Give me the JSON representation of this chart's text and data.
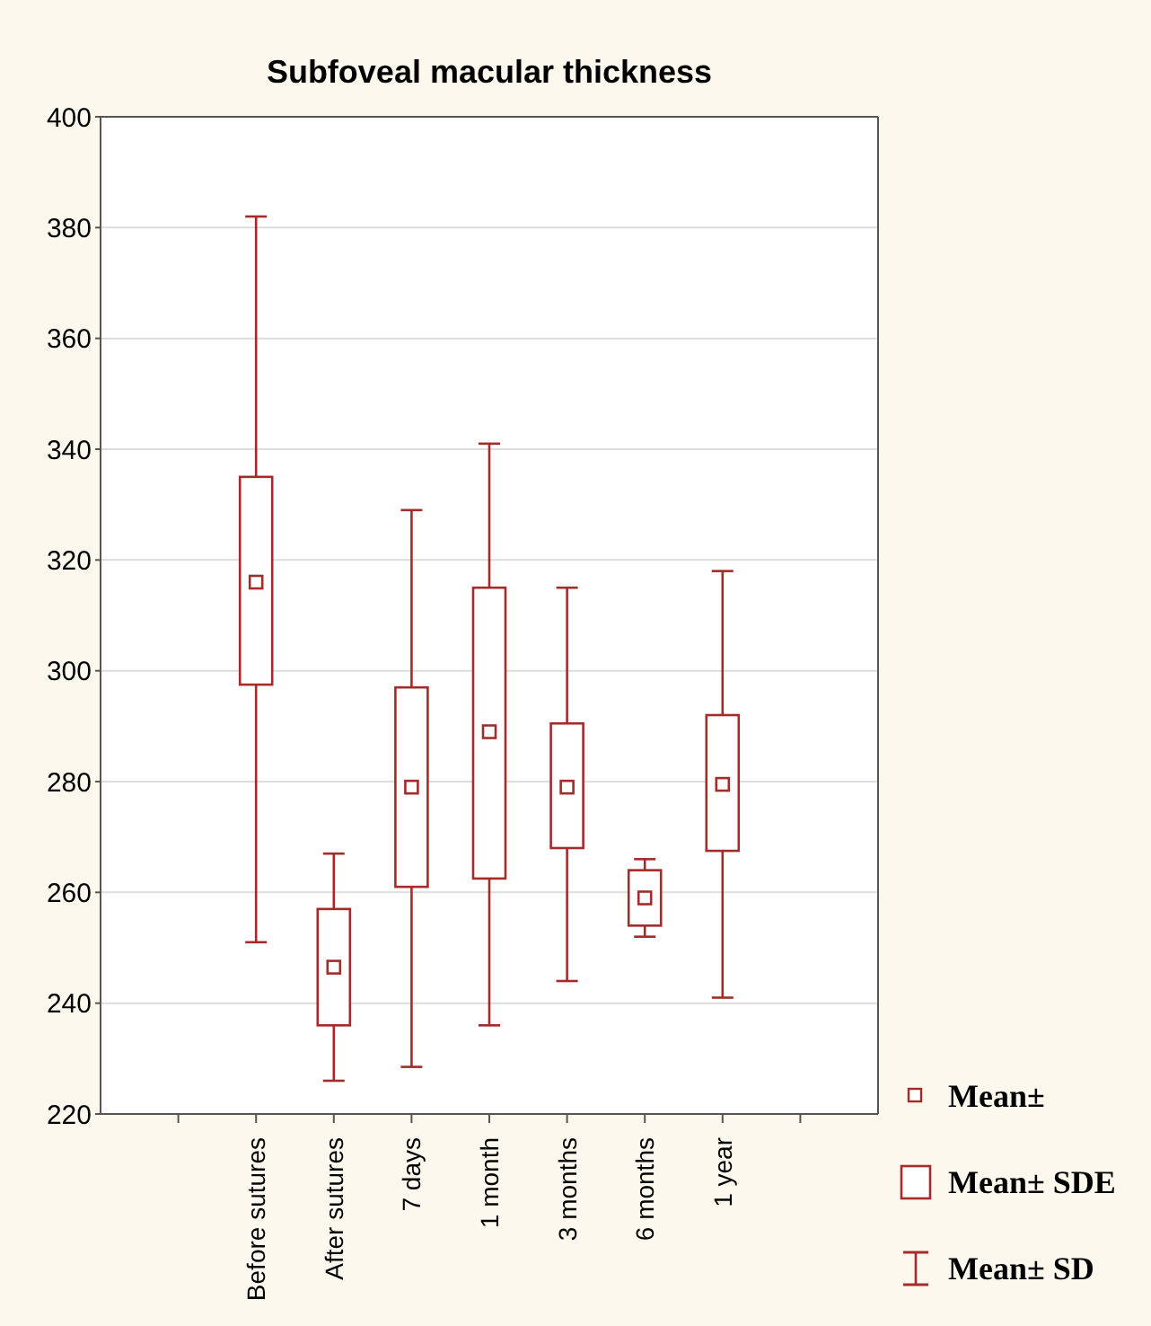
{
  "chart_data": {
    "type": "box",
    "title": "Subfoveal macular thickness",
    "categories": [
      null,
      "Before sutures",
      "After sutures",
      "7 days",
      "1 month",
      "3 months",
      "6 months",
      "1 year",
      null
    ],
    "color": "#a52a2a",
    "boxes": [
      null,
      {
        "low": 251,
        "q1": 297.5,
        "q3": 335,
        "high": 382,
        "mean": 316
      },
      {
        "low": 226,
        "q1": 236,
        "q3": 257,
        "high": 267,
        "mean": 246.5
      },
      {
        "low": 228.5,
        "q1": 261,
        "q3": 297,
        "high": 329,
        "mean": 279
      },
      {
        "low": 236,
        "q1": 262.5,
        "q3": 315,
        "high": 341,
        "mean": 289
      },
      {
        "low": 244,
        "q1": 268,
        "q3": 290.5,
        "high": 315,
        "mean": 279
      },
      {
        "low": 252,
        "q1": 254,
        "q3": 264,
        "high": 266,
        "mean": 259
      },
      {
        "low": 241,
        "q1": 267.5,
        "q3": 292,
        "high": 318,
        "mean": 279.5
      },
      null
    ],
    "ylim": [
      220,
      400
    ],
    "yticks": [
      220,
      240,
      260,
      280,
      300,
      320,
      340,
      360,
      380,
      400
    ],
    "grid": "y",
    "annotations": [
      "Mean±",
      "Mean± SDE",
      "Mean± SD"
    ]
  }
}
